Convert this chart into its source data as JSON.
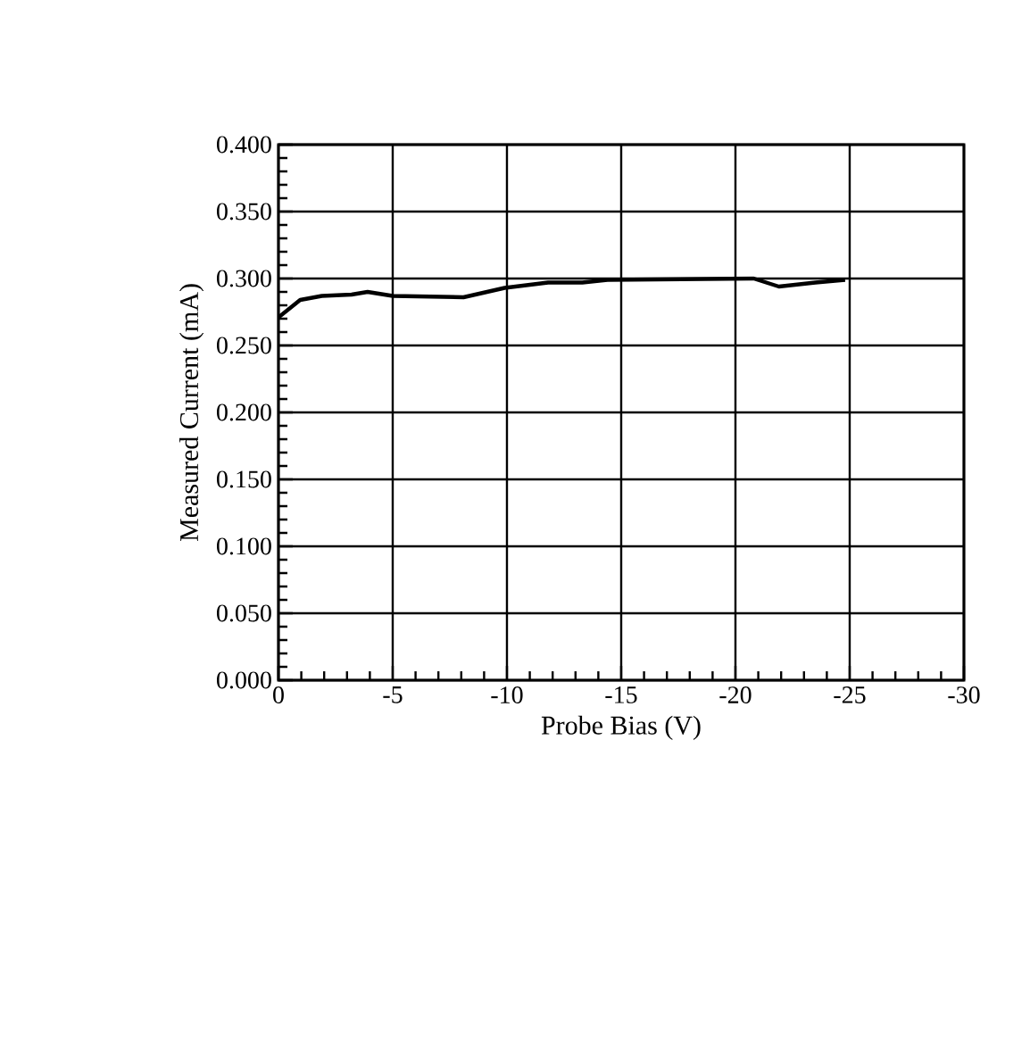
{
  "chart_data": {
    "type": "line",
    "xlabel": "Probe Bias (V)",
    "ylabel": "Measured Current (mA)",
    "x": [
      0,
      -0.95,
      -1.9,
      -3.2,
      -3.9,
      -5,
      -8.1,
      -9.9,
      -11.8,
      -13.3,
      -14.4,
      -20.8,
      -21.9,
      -23.5,
      -24.8
    ],
    "series": [
      {
        "color": "#000000",
        "values": [
          0.271,
          0.284,
          0.287,
          0.288,
          0.29,
          0.287,
          0.286,
          0.293,
          0.297,
          0.297,
          0.299,
          0.3,
          0.294,
          0.297,
          0.299
        ]
      }
    ],
    "xlim": [
      0,
      -30
    ],
    "xticks": [
      0,
      -5,
      -10,
      -15,
      -20,
      -25,
      -30
    ],
    "ylim": [
      0,
      0.4
    ],
    "yticks": [
      {
        "value": 0,
        "label": "0.000"
      },
      {
        "value": 0.05,
        "label": "0.050"
      },
      {
        "value": 0.1,
        "label": "0.100"
      },
      {
        "value": 0.15,
        "label": "0.150"
      },
      {
        "value": 0.2,
        "label": "0.200"
      },
      {
        "value": 0.25,
        "label": "0.250"
      },
      {
        "value": 0.3,
        "label": "0.300"
      },
      {
        "value": 0.35,
        "label": "0.350"
      },
      {
        "value": 0.4,
        "label": "0.400"
      }
    ],
    "grid": true,
    "marker": "none",
    "line_style": "solid"
  }
}
